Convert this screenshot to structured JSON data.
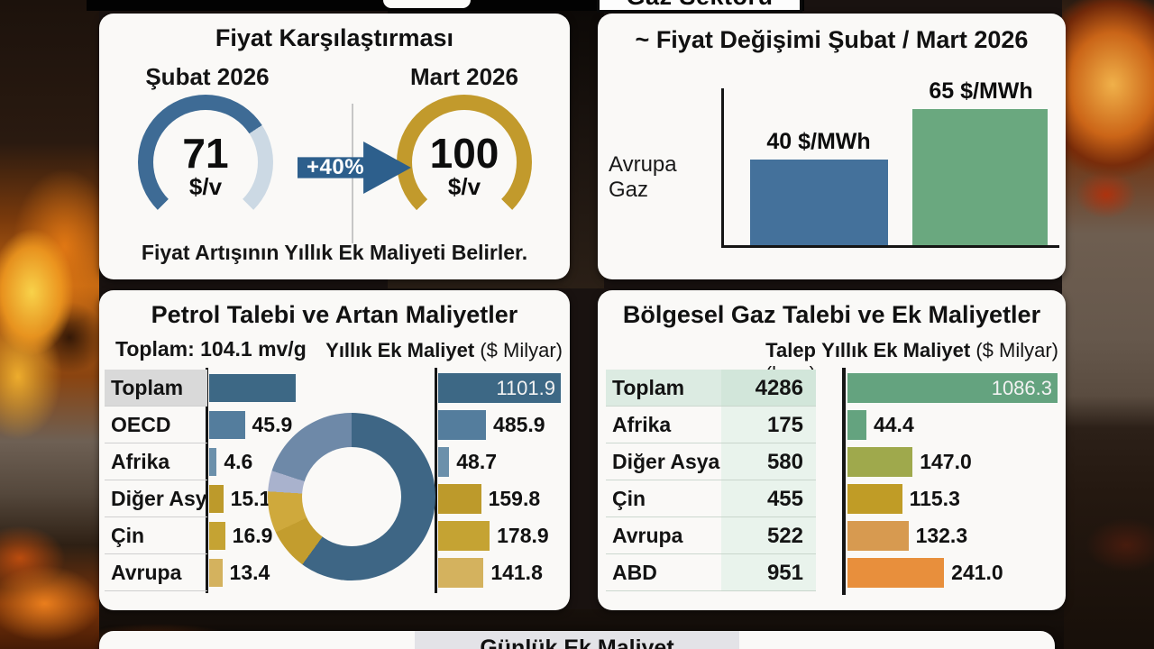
{
  "banners": {
    "gas_sector": "Gaz Sektörü"
  },
  "chart_data": [
    {
      "id": "price_comparison_gauges",
      "type": "gauge-pair",
      "title": "Fiyat Karşılaştırması",
      "items": [
        {
          "label": "Şubat 2026",
          "display": "71",
          "value": 71,
          "unit": "$/v",
          "pct": 71,
          "color": "#3e6b95",
          "track": "#ccd9e4"
        },
        {
          "label": "Mart 2026",
          "display": "100",
          "value": 100,
          "unit": "$/v",
          "pct": 100,
          "color": "#c29a2c",
          "track": "#c29a2c"
        }
      ],
      "change_label": "+40%",
      "change_arrow_color": "#2d5f8c",
      "caption": "Fiyat Artışının Yıllık Ek Maliyeti Belirler."
    },
    {
      "id": "gas_price_change",
      "type": "bar",
      "title": "~ Fiyat Değişimi Şubat / Mart 2026",
      "category": "Avrupa Gaz",
      "unit": "$/MWh",
      "bars": [
        {
          "label": "40 $/MWh",
          "value": 40,
          "pct": 55,
          "color": "#44719b"
        },
        {
          "label": "65 $/MWh",
          "value": 65,
          "pct": 88,
          "color": "#6aa87f"
        }
      ],
      "grid": false,
      "axis_color": "#151515"
    },
    {
      "id": "oil_demand_and_costs",
      "type": "table+bar+donut",
      "title": "Petrol Talebi ve Artan Maliyetler",
      "demand_header": "Toplam: 104.1 mv/g",
      "cost_header_bold": "Yıllık Ek Maliyet",
      "cost_header_rest": " ($ Milyar)",
      "rows": [
        {
          "label": "Toplam",
          "demand_value": 104.1,
          "demand_label": "",
          "demand_bar": {
            "pct": 100,
            "color": "#3d6885"
          },
          "cost_value": 1101.9,
          "cost_label": "1101.9",
          "cost_bar": {
            "pct": 100,
            "color": "#3d6885"
          }
        },
        {
          "label": "OECD",
          "demand_value": 45.9,
          "demand_label": "45.9",
          "demand_bar": {
            "pct": 38,
            "color": "#547d9d"
          },
          "cost_value": 485.9,
          "cost_label": "485.9",
          "cost_bar": {
            "pct": 39,
            "color": "#547d9d"
          }
        },
        {
          "label": "Afrika",
          "demand_value": 4.6,
          "demand_label": "4.6",
          "demand_bar": {
            "pct": 8,
            "color": "#6b90ab"
          },
          "cost_value": 48.7,
          "cost_label": "48.7",
          "cost_bar": {
            "pct": 9,
            "color": "#6b90ab"
          }
        },
        {
          "label": "Diğer Asya",
          "demand_value": 15.1,
          "demand_label": "15.1",
          "demand_bar": {
            "pct": 15,
            "color": "#bd9a2b"
          },
          "cost_value": 159.8,
          "cost_label": "159.8",
          "cost_bar": {
            "pct": 35,
            "color": "#bd9a2b"
          }
        },
        {
          "label": "Çin",
          "demand_value": 16.9,
          "demand_label": "16.9",
          "demand_bar": {
            "pct": 17,
            "color": "#c5a333"
          },
          "cost_value": 178.9,
          "cost_label": "178.9",
          "cost_bar": {
            "pct": 42,
            "color": "#c5a333"
          }
        },
        {
          "label": "Avrupa",
          "demand_value": 13.4,
          "demand_label": "13.4",
          "demand_bar": {
            "pct": 14,
            "color": "#d4b25e"
          },
          "cost_value": 141.8,
          "cost_label": "141.8",
          "cost_bar": {
            "pct": 37,
            "color": "#d4b25e"
          }
        }
      ],
      "donut": {
        "slices": [
          {
            "name": "OECD",
            "pct": 60,
            "color": "#3e6685"
          },
          {
            "name": "Çin",
            "pct": 8,
            "color": "#c39d2e"
          },
          {
            "name": "Diğer Asya",
            "pct": 8,
            "color": "#cfa93c"
          },
          {
            "name": "Afrika",
            "pct": 4,
            "color": "#a9b2cd"
          },
          {
            "name": "Avrupa",
            "pct": 20,
            "color": "#6e89a8"
          }
        ]
      }
    },
    {
      "id": "gas_demand_and_costs",
      "type": "table+bar",
      "title": "Bölgesel Gaz Talebi ve Ek Maliyetler",
      "demand_header_bold": "Talep",
      "demand_header_rest": " (bcm)",
      "cost_header_bold": "Yıllık Ek Maliyet",
      "cost_header_rest": " ($ Milyar)",
      "rows": [
        {
          "label": "Toplam",
          "demand": "4286",
          "cost_value": 1086.3,
          "cost_label": "1086.3",
          "cost_bar": {
            "pct": 100,
            "color": "#64a37f"
          }
        },
        {
          "label": "Afrika",
          "demand": "175",
          "cost_value": 44.4,
          "cost_label": "44.4",
          "cost_bar": {
            "pct": 9,
            "color": "#64a37f"
          }
        },
        {
          "label": "Diğer Asya",
          "demand": "580",
          "cost_value": 147.0,
          "cost_label": "147.0",
          "cost_bar": {
            "pct": 31,
            "color": "#9fa94c"
          }
        },
        {
          "label": "Çin",
          "demand": "455",
          "cost_value": 115.3,
          "cost_label": "115.3",
          "cost_bar": {
            "pct": 26,
            "color": "#c09c26"
          }
        },
        {
          "label": "Avrupa",
          "demand": "522",
          "cost_value": 132.3,
          "cost_label": "132.3",
          "cost_bar": {
            "pct": 29,
            "color": "#d79a50"
          }
        },
        {
          "label": "ABD",
          "demand": "951",
          "cost_value": 241.0,
          "cost_label": "241.0",
          "cost_bar": {
            "pct": 46,
            "color": "#e88f3c"
          }
        }
      ]
    },
    {
      "id": "daily_extra_cost",
      "type": "panel",
      "title": "Günlük Ek Maliyet"
    }
  ]
}
